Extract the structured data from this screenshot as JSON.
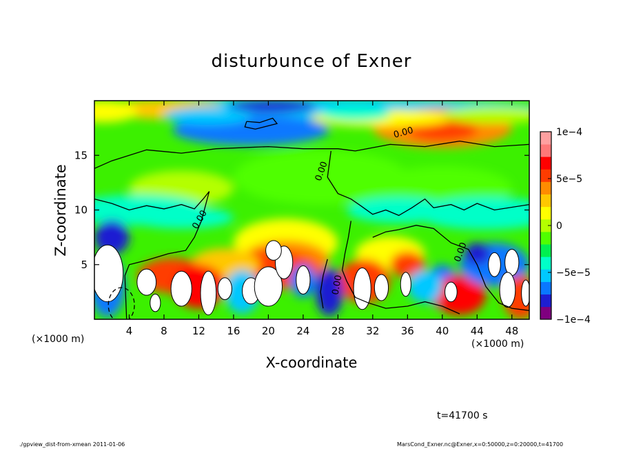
{
  "chart_data": {
    "type": "heatmap",
    "title": "disturbunce of Exner",
    "xlabel": "X-coordinate",
    "ylabel": "Z-coordinate",
    "x_unit_label": "(×1000 m)",
    "y_unit_label": "(×1000 m)",
    "xlim": [
      0,
      50
    ],
    "ylim": [
      0,
      20
    ],
    "x_ticks": [
      4,
      8,
      12,
      16,
      20,
      24,
      28,
      32,
      36,
      40,
      44,
      48
    ],
    "y_ticks": [
      5,
      10,
      15
    ],
    "colorbar": {
      "range": [
        -0.0001,
        0.0001
      ],
      "tick_values": [
        0.0001,
        5e-05,
        0,
        -5e-05,
        -0.0001
      ],
      "tick_labels": [
        "1e−4",
        "5e−5",
        "0",
        "−5e−5",
        "−1e−4"
      ],
      "colors": [
        "#7f007f",
        "#1e1ed2",
        "#0a78ff",
        "#00c8ff",
        "#00ffc8",
        "#00f050",
        "#50ff00",
        "#b4ff00",
        "#ffff00",
        "#ffc800",
        "#ff8c00",
        "#ff3c00",
        "#ff0000",
        "#ff7878",
        "#ffa0a0"
      ]
    },
    "contour_labels": [
      "0.00",
      "0.00",
      "0.00",
      "0.00",
      "0.00"
    ],
    "time_label": "t=41700 s"
  },
  "footer": {
    "left": "./gpview_dist-from-xmean   2011-01-06",
    "right": "MarsCond_Exner.nc@Exner,x=0:50000,z=0:20000,t=41700"
  }
}
